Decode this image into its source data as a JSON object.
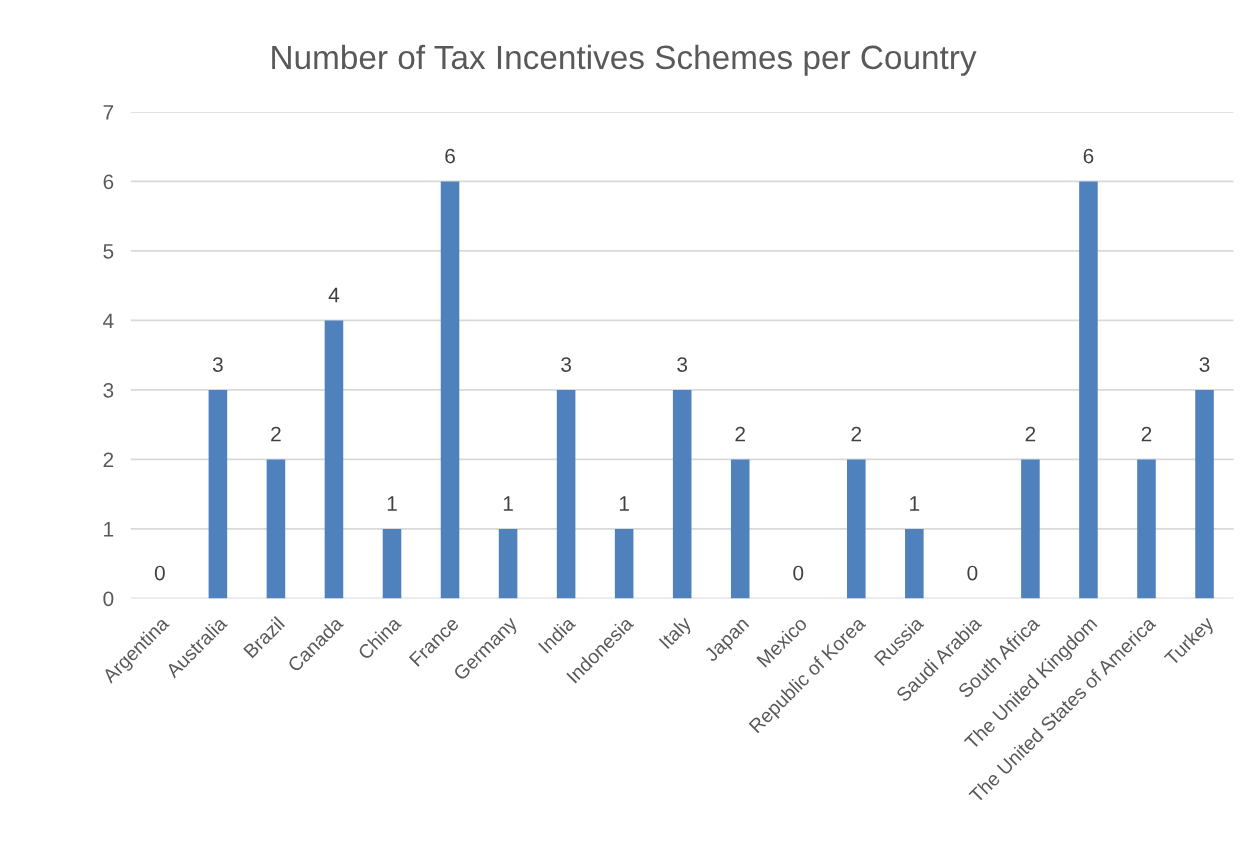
{
  "chart_data": {
    "type": "bar",
    "title": "Number of Tax Incentives Schemes per Country",
    "categories": [
      "Argentina",
      "Australia",
      "Brazil",
      "Canada",
      "China",
      "France",
      "Germany",
      "India",
      "Indonesia",
      "Italy",
      "Japan",
      "Mexico",
      "Republic of Korea",
      "Russia",
      "Saudi Arabia",
      "South Africa",
      "The United Kingdom",
      "The United States of America",
      "Turkey"
    ],
    "values": [
      0,
      3,
      2,
      4,
      1,
      6,
      1,
      3,
      1,
      3,
      2,
      0,
      2,
      1,
      0,
      2,
      6,
      2,
      3
    ],
    "color": "#4f81bd",
    "ylim": [
      0,
      7
    ],
    "yticks": [
      0,
      1,
      2,
      3,
      4,
      5,
      6,
      7
    ],
    "grid": "y",
    "data_labels": true
  }
}
